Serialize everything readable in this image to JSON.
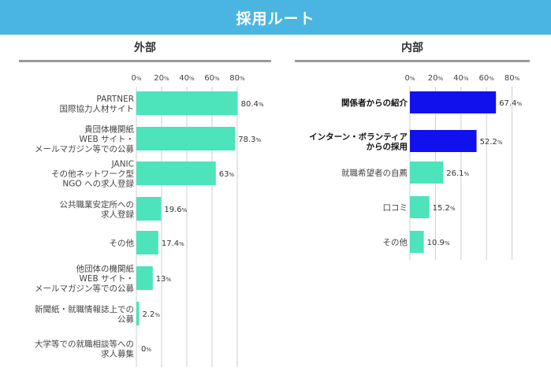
{
  "header": {
    "title": "採用ルート"
  },
  "chart_data": [
    {
      "type": "bar",
      "orientation": "horizontal",
      "title": "外部",
      "unit": "%",
      "xlim": [
        0,
        90
      ],
      "ticks": [
        0,
        20,
        40,
        60,
        80
      ],
      "bar_color": "#4de3bb",
      "categories": [
        "PARTNER\n国際協力人材サイト",
        "貴団体機関紙\nWEB サイト・\nメールマガジン等での公募",
        "JANIC\nその他ネットワーク型\nNGO への求人登録",
        "公共職業安定所への\n求人登録",
        "その他",
        "他団体の機関紙\nWEB サイト・\nメールマガジン等での公募",
        "新聞紙・就職情報誌上での\n公募",
        "大学等での就職相談等への\n求人募集"
      ],
      "values": [
        80.4,
        78.3,
        63,
        19.6,
        17.4,
        13,
        2.2,
        0
      ]
    },
    {
      "type": "bar",
      "orientation": "horizontal",
      "title": "内部",
      "unit": "%",
      "xlim": [
        0,
        90
      ],
      "ticks": [
        0,
        20,
        40,
        60,
        80
      ],
      "highlight_color": "#1111ee",
      "bar_color": "#4de3bb",
      "categories": [
        "関係者からの紹介",
        "インターン・ボランティア\nからの採用",
        "就職希望者の自薦",
        "口コミ",
        "その他"
      ],
      "values": [
        67.4,
        52.2,
        26.1,
        15.2,
        10.9
      ],
      "highlighted": [
        true,
        true,
        false,
        false,
        false
      ]
    }
  ]
}
